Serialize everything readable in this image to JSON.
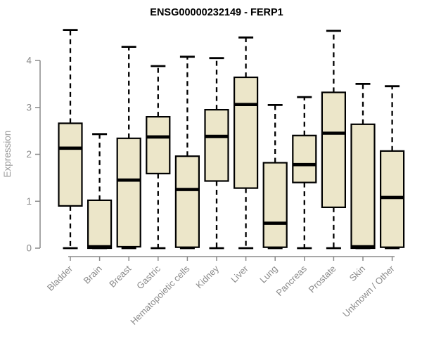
{
  "chart_data": {
    "type": "boxplot",
    "title": "ENSG00000232149 - FERP1",
    "ylabel": "Expression",
    "xlabel": "",
    "ylim": [
      0,
      4.7
    ],
    "yticks": [
      0,
      1,
      2,
      3,
      4
    ],
    "grid": false,
    "legend": false,
    "categories": [
      "Bladder",
      "Brain",
      "Breast",
      "Gastric",
      "Hematopoietic cells",
      "Kidney",
      "Liver",
      "Lung",
      "Pancreas",
      "Prostate",
      "Skin",
      "Unknown / Other"
    ],
    "boxes": [
      {
        "category": "Bladder",
        "low": 0,
        "q1": 0.9,
        "median": 2.13,
        "q3": 2.66,
        "high": 4.65
      },
      {
        "category": "Brain",
        "low": 0,
        "q1": 0.0,
        "median": 0.03,
        "q3": 1.02,
        "high": 2.43
      },
      {
        "category": "Breast",
        "low": 0,
        "q1": 0.03,
        "median": 1.45,
        "q3": 2.34,
        "high": 4.29
      },
      {
        "category": "Gastric",
        "low": 0,
        "q1": 1.59,
        "median": 2.37,
        "q3": 2.8,
        "high": 3.88
      },
      {
        "category": "Hematopoietic cells",
        "low": 0,
        "q1": 0.02,
        "median": 1.25,
        "q3": 1.96,
        "high": 4.08
      },
      {
        "category": "Kidney",
        "low": 0,
        "q1": 1.43,
        "median": 2.38,
        "q3": 2.95,
        "high": 4.05
      },
      {
        "category": "Liver",
        "low": 0,
        "q1": 1.28,
        "median": 3.06,
        "q3": 3.64,
        "high": 4.49
      },
      {
        "category": "Lung",
        "low": 0,
        "q1": 0.02,
        "median": 0.53,
        "q3": 1.82,
        "high": 3.05
      },
      {
        "category": "Pancreas",
        "low": 0,
        "q1": 1.4,
        "median": 1.78,
        "q3": 2.4,
        "high": 3.22
      },
      {
        "category": "Prostate",
        "low": 0,
        "q1": 0.87,
        "median": 2.45,
        "q3": 3.32,
        "high": 4.63
      },
      {
        "category": "Skin",
        "low": 0,
        "q1": 0.0,
        "median": 0.03,
        "q3": 2.64,
        "high": 3.5
      },
      {
        "category": "Unknown / Other",
        "low": 0,
        "q1": 0.02,
        "median": 1.08,
        "q3": 2.07,
        "high": 3.45
      }
    ],
    "colors": {
      "box_fill": "#ece6c9",
      "box_border": "#000000",
      "median": "#000000",
      "whisker": "#000000",
      "axis": "#8a8a8a",
      "tick_label": "#8a8a8a",
      "axis_label": "#9a9a9a",
      "title": "#000000",
      "background": "#ffffff"
    }
  }
}
